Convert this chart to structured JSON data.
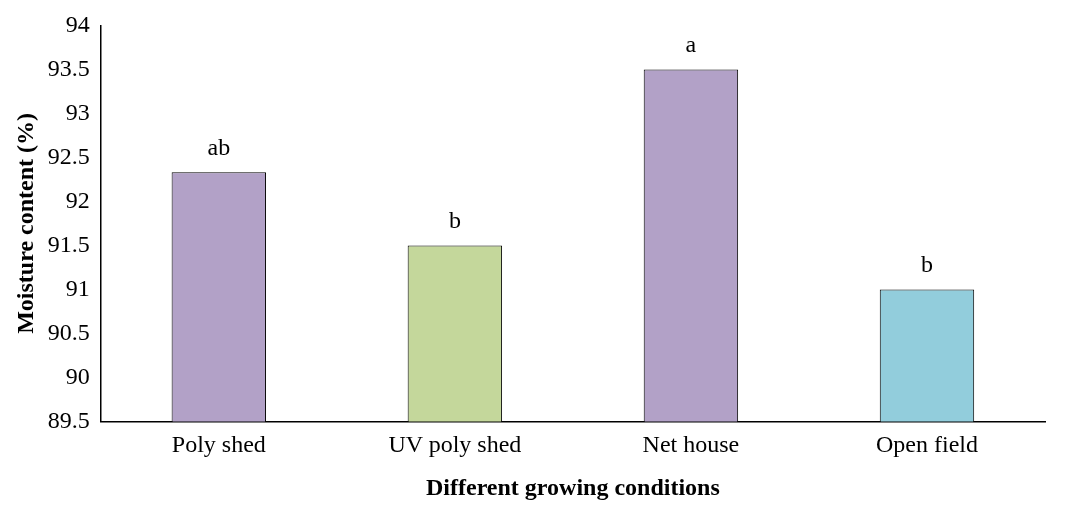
{
  "chart_data": {
    "type": "bar",
    "xlabel": "Different growing conditions",
    "ylabel": "Moisture content (%)",
    "categories": [
      "Poly shed",
      "UV poly shed",
      "Net house",
      "Open field"
    ],
    "values": [
      92.33,
      91.5,
      93.5,
      91.0
    ],
    "colors": [
      "#b2a1c7",
      "#c4d79b",
      "#b2a1c7",
      "#92cddc"
    ],
    "ylim": [
      89.5,
      94
    ],
    "yticks": [
      89.5,
      90,
      90.5,
      91,
      91.5,
      92,
      92.5,
      93,
      93.5,
      94
    ],
    "grid": false,
    "legend": false,
    "annotations": [
      {
        "text": "ab",
        "x": "Poly shed",
        "y": 92.33
      },
      {
        "text": "b",
        "x": "UV poly shed",
        "y": 91.5
      },
      {
        "text": "a",
        "x": "Net house",
        "y": 93.5
      },
      {
        "text": "b",
        "x": "Open field",
        "y": 91.0
      }
    ]
  }
}
